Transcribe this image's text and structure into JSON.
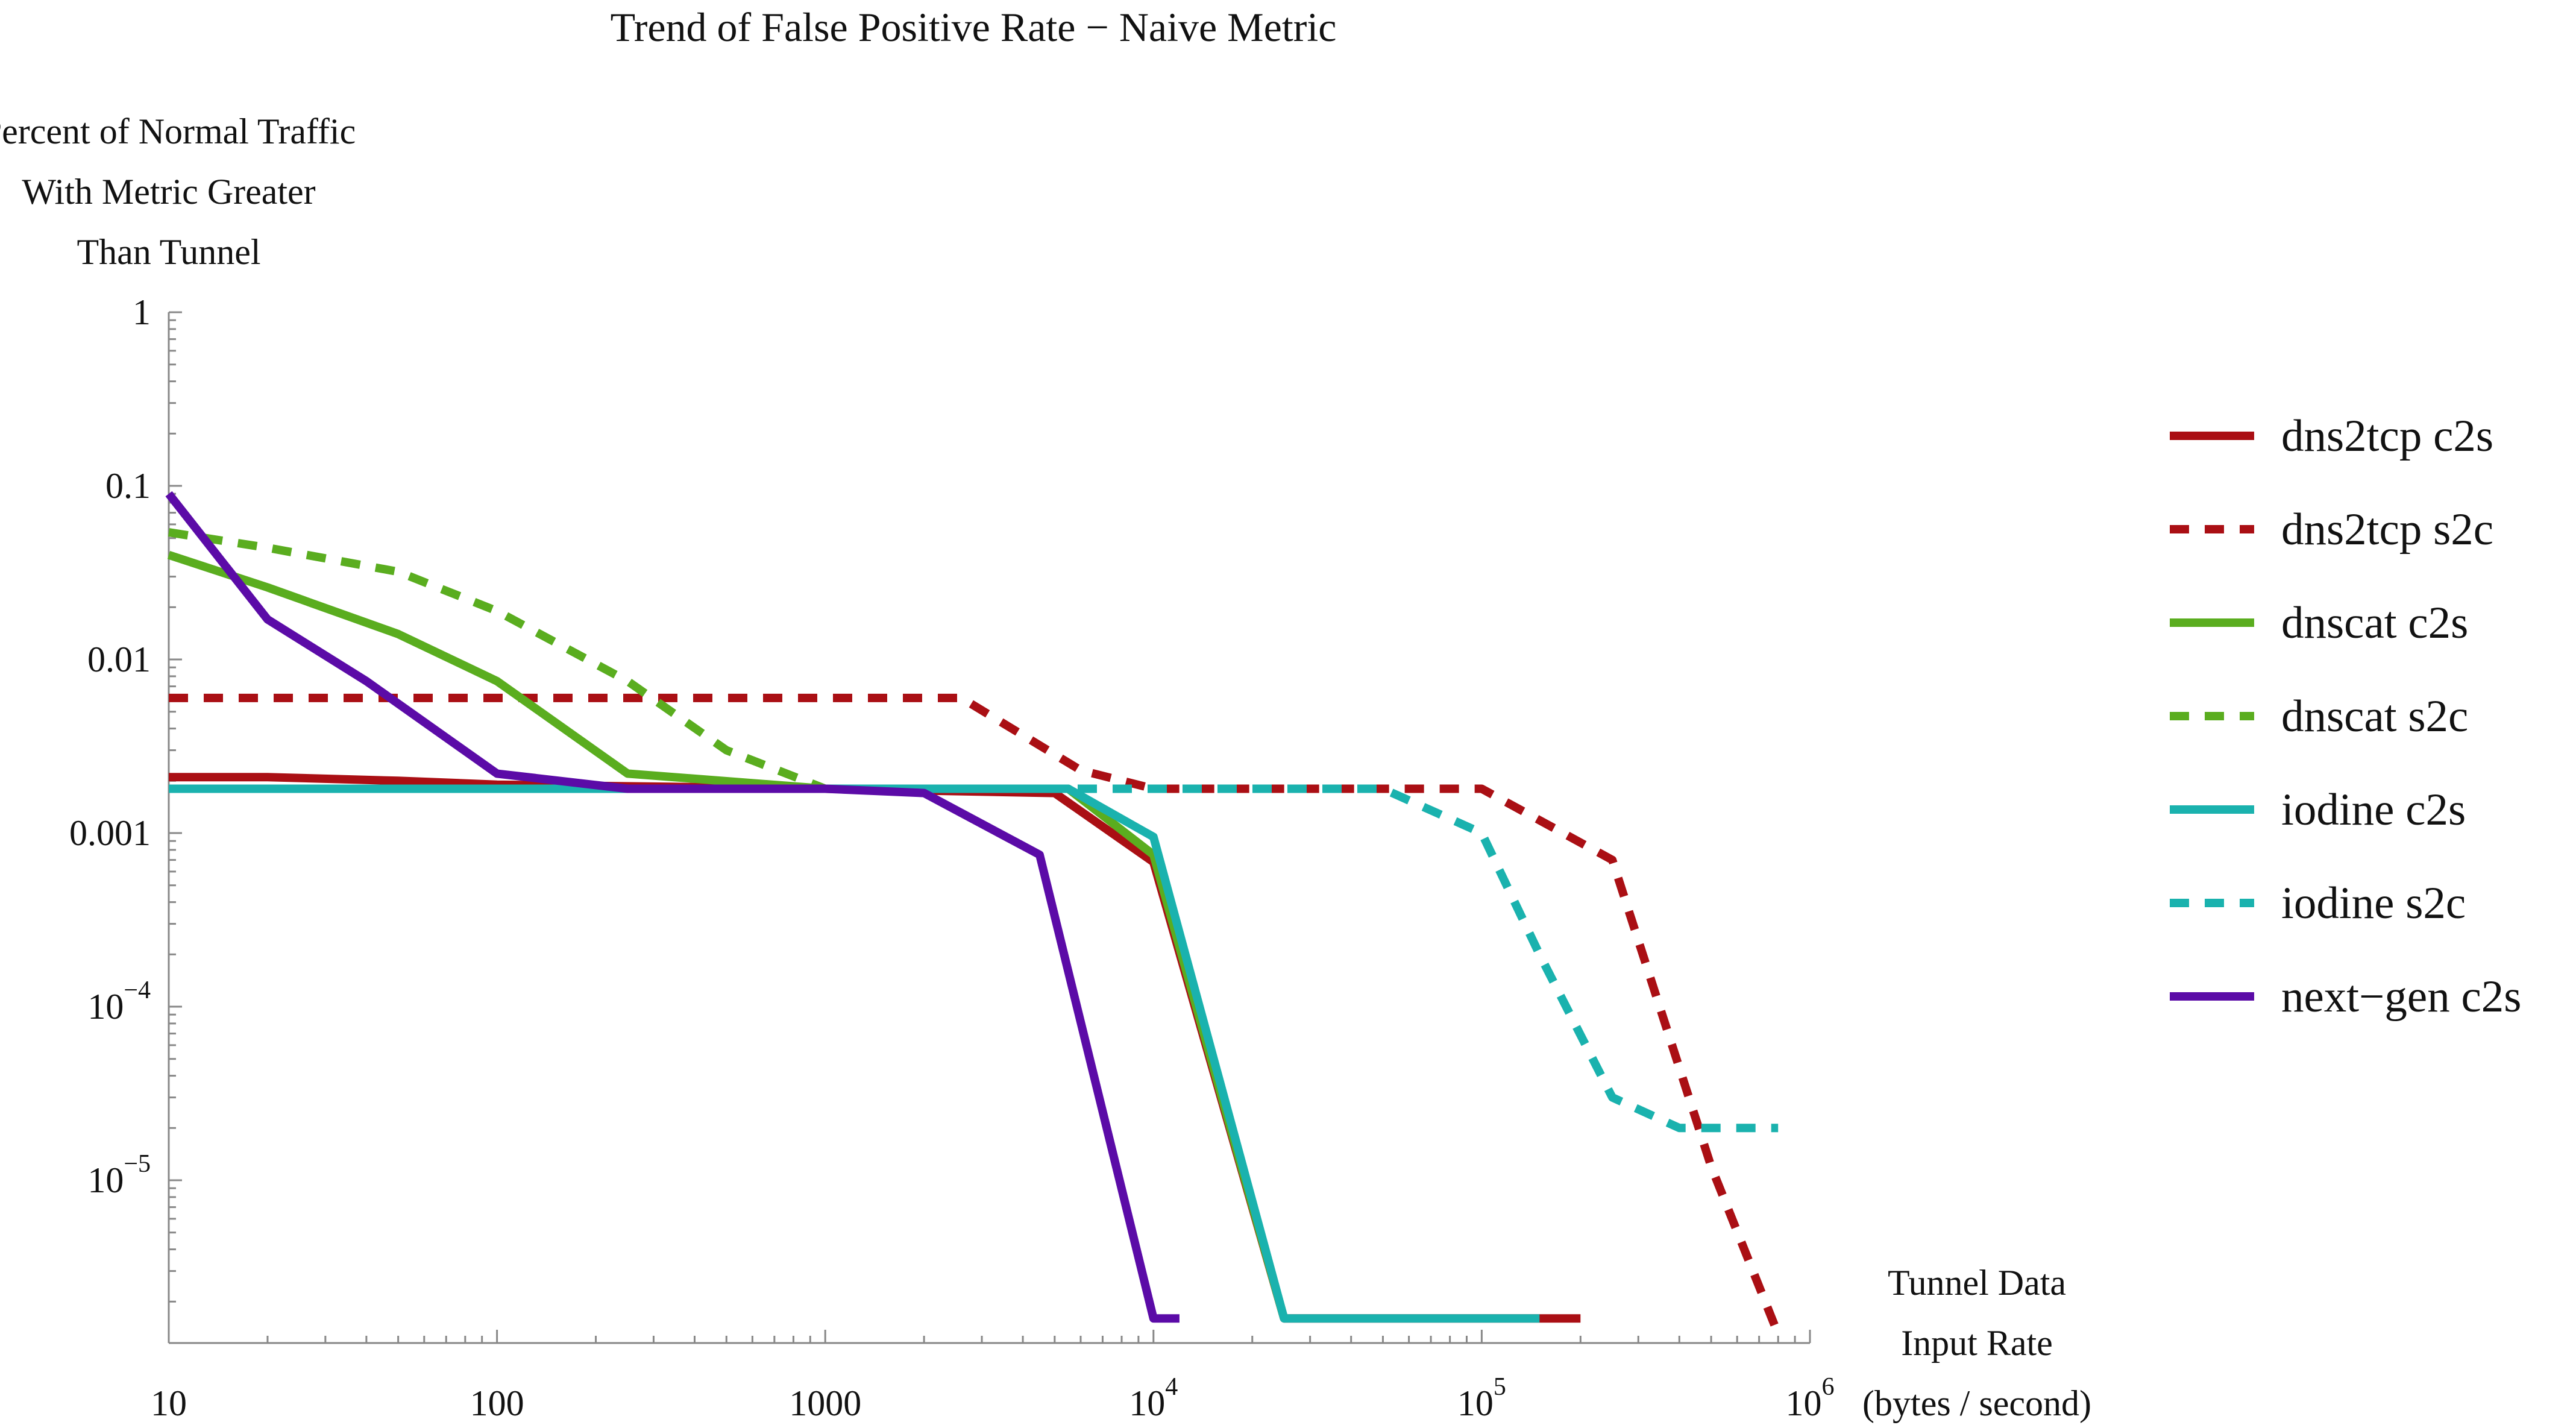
{
  "chart_data": {
    "type": "line",
    "title": "Trend of False Positive Rate − Naive Metric",
    "ylabel": [
      "Percent of Normal Traffic",
      "With Metric Greater",
      "Than Tunnel"
    ],
    "xlabel": [
      "Tunnel Data",
      "Input Rate",
      "(bytes / second)"
    ],
    "x_scale": "log",
    "y_scale": "log",
    "xlim": [
      10,
      1000000
    ],
    "ylim": [
      2e-07,
      1
    ],
    "x_ticks": [
      {
        "value": 10,
        "base": "10",
        "exp": ""
      },
      {
        "value": 100,
        "base": "100",
        "exp": ""
      },
      {
        "value": 1000,
        "base": "1000",
        "exp": ""
      },
      {
        "value": 10000,
        "base": "10",
        "exp": "4"
      },
      {
        "value": 100000,
        "base": "10",
        "exp": "5"
      },
      {
        "value": 1000000,
        "base": "10",
        "exp": "6"
      }
    ],
    "y_ticks": [
      {
        "value": 1,
        "base": "1",
        "exp": ""
      },
      {
        "value": 0.1,
        "base": "0.1",
        "exp": ""
      },
      {
        "value": 0.01,
        "base": "0.01",
        "exp": ""
      },
      {
        "value": 0.001,
        "base": "0.001",
        "exp": ""
      },
      {
        "value": 0.0001,
        "base": "10",
        "exp": "−4"
      },
      {
        "value": 1e-05,
        "base": "10",
        "exp": "−5"
      }
    ],
    "legend_position": "right",
    "series": [
      {
        "name": "dns2tcp c2s",
        "color": "#aa0f14",
        "dash": "solid",
        "points": [
          [
            10,
            0.0021
          ],
          [
            20,
            0.0021
          ],
          [
            50,
            0.002
          ],
          [
            100,
            0.0019
          ],
          [
            1000,
            0.0018
          ],
          [
            5000,
            0.0017
          ],
          [
            10000,
            0.00068
          ],
          [
            25000,
            1.6e-06
          ],
          [
            200000,
            1.6e-06
          ]
        ]
      },
      {
        "name": "dns2tcp s2c",
        "color": "#aa0f14",
        "dash": "dashed",
        "points": [
          [
            10,
            0.006
          ],
          [
            2600,
            0.006
          ],
          [
            6000,
            0.0023
          ],
          [
            10000,
            0.0018
          ],
          [
            100000,
            0.0018
          ],
          [
            250000,
            0.0007
          ],
          [
            500000,
            1.2e-05
          ],
          [
            800000,
            1.3e-06
          ]
        ]
      },
      {
        "name": "dnscat c2s",
        "color": "#5aad1f",
        "dash": "solid",
        "points": [
          [
            10,
            0.04
          ],
          [
            20,
            0.026
          ],
          [
            50,
            0.014
          ],
          [
            100,
            0.0075
          ],
          [
            250,
            0.0022
          ],
          [
            1000,
            0.0018
          ],
          [
            5500,
            0.0018
          ],
          [
            10000,
            0.00075
          ],
          [
            25000,
            1.6e-06
          ]
        ]
      },
      {
        "name": "dnscat s2c",
        "color": "#5aad1f",
        "dash": "dashed",
        "points": [
          [
            10,
            0.054
          ],
          [
            20,
            0.044
          ],
          [
            50,
            0.032
          ],
          [
            100,
            0.019
          ],
          [
            250,
            0.0075
          ],
          [
            500,
            0.003
          ],
          [
            1000,
            0.0018
          ]
        ]
      },
      {
        "name": "iodine c2s",
        "color": "#1ab2ae",
        "dash": "solid",
        "points": [
          [
            10,
            0.0018
          ],
          [
            5500,
            0.0018
          ],
          [
            10000,
            0.00095
          ],
          [
            25000,
            1.6e-06
          ],
          [
            150000,
            1.6e-06
          ]
        ]
      },
      {
        "name": "iodine s2c",
        "color": "#1ab2ae",
        "dash": "dashed",
        "points": [
          [
            10,
            0.0018
          ],
          [
            50000,
            0.0018
          ],
          [
            100000,
            0.001
          ],
          [
            150000,
            0.0002
          ],
          [
            250000,
            3e-05
          ],
          [
            400000,
            2e-05
          ],
          [
            800000,
            2e-05
          ]
        ]
      },
      {
        "name": "next−gen c2s",
        "color": "#5b0ba7",
        "dash": "solid",
        "points": [
          [
            10,
            0.09
          ],
          [
            20,
            0.017
          ],
          [
            40,
            0.0075
          ],
          [
            100,
            0.0022
          ],
          [
            250,
            0.0018
          ],
          [
            1000,
            0.0018
          ],
          [
            2000,
            0.0017
          ],
          [
            4500,
            0.00075
          ],
          [
            10000,
            1.6e-06
          ],
          [
            12000,
            1.6e-06
          ]
        ]
      }
    ]
  }
}
